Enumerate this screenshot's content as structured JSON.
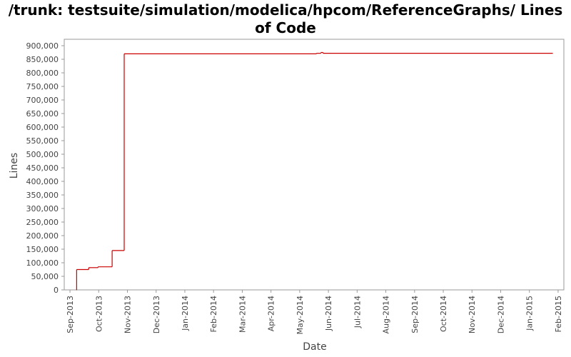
{
  "chart_data": {
    "type": "step-line",
    "title": "/trunk: testsuite/simulation/modelica/hpcom/ReferenceGraphs/ Lines of Code",
    "xlabel": "Date",
    "ylabel": "Lines",
    "x": [
      2013.685,
      2013.686,
      2013.721,
      2013.748,
      2013.789,
      2013.824,
      2014.382,
      2014.395,
      2014.401,
      2015.068
    ],
    "series": [
      {
        "name": "Lines",
        "color": "#cc0000",
        "values": [
          0,
          75000,
          82000,
          85000,
          145000,
          870000,
          872000,
          875000,
          872000,
          872000
        ]
      }
    ],
    "xlim": [
      2013.65,
      2015.1
    ],
    "xticks": [
      {
        "value": 2013.6667,
        "label": "Sep-2013"
      },
      {
        "value": 2013.75,
        "label": "Oct-2013"
      },
      {
        "value": 2013.8333,
        "label": "Nov-2013"
      },
      {
        "value": 2013.9167,
        "label": "Dec-2013"
      },
      {
        "value": 2014.0,
        "label": "Jan-2014"
      },
      {
        "value": 2014.0833,
        "label": "Feb-2014"
      },
      {
        "value": 2014.1667,
        "label": "Mar-2014"
      },
      {
        "value": 2014.25,
        "label": "Apr-2014"
      },
      {
        "value": 2014.3333,
        "label": "May-2014"
      },
      {
        "value": 2014.4167,
        "label": "Jun-2014"
      },
      {
        "value": 2014.5,
        "label": "Jul-2014"
      },
      {
        "value": 2014.5833,
        "label": "Aug-2014"
      },
      {
        "value": 2014.6667,
        "label": "Sep-2014"
      },
      {
        "value": 2014.75,
        "label": "Oct-2014"
      },
      {
        "value": 2014.8333,
        "label": "Nov-2014"
      },
      {
        "value": 2014.9167,
        "label": "Dec-2014"
      },
      {
        "value": 2015.0,
        "label": "Jan-2015"
      },
      {
        "value": 2015.0833,
        "label": "Feb-2015"
      }
    ],
    "ylim": [
      0,
      900000
    ],
    "yticks": [
      0,
      {
        "value": 50000,
        "label": "50,000"
      },
      {
        "value": 100000,
        "label": "100,000"
      },
      {
        "value": 150000,
        "label": "150,000"
      },
      {
        "value": 200000,
        "label": "200,000"
      },
      {
        "value": 250000,
        "label": "250,000"
      },
      {
        "value": 300000,
        "label": "300,000"
      },
      {
        "value": 350000,
        "label": "350,000"
      },
      {
        "value": 400000,
        "label": "400,000"
      },
      {
        "value": 450000,
        "label": "450,000"
      },
      {
        "value": 500000,
        "label": "500,000"
      },
      {
        "value": 550000,
        "label": "550,000"
      },
      {
        "value": 600000,
        "label": "600,000"
      },
      {
        "value": 650000,
        "label": "650,000"
      },
      {
        "value": 700000,
        "label": "700,000"
      },
      {
        "value": 750000,
        "label": "750,000"
      },
      {
        "value": 800000,
        "label": "800,000"
      },
      {
        "value": 850000,
        "label": "850,000"
      },
      {
        "value": 900000,
        "label": "900,000"
      }
    ],
    "grid": false
  }
}
